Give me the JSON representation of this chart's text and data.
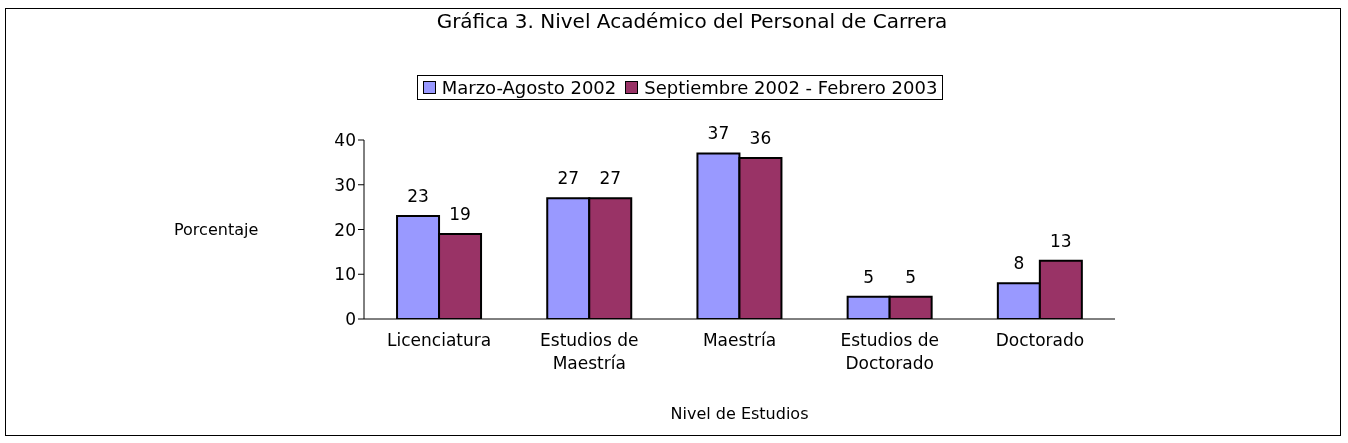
{
  "chart_data": {
    "type": "bar",
    "title": "Gráfica 3. Nivel Académico del Personal de Carrera",
    "xlabel": "Nivel de Estudios",
    "ylabel": "Porcentaje",
    "categories": [
      "Licenciatura",
      "Estudios de Maestría",
      "Maestría",
      "Estudios de Doctorado",
      "Doctorado"
    ],
    "series": [
      {
        "name": "Marzo-Agosto 2002",
        "color": "#9999ff",
        "values": [
          23,
          27,
          37,
          5,
          8
        ]
      },
      {
        "name": "Septiembre 2002 - Febrero 2003",
        "color": "#993366",
        "values": [
          19,
          27,
          36,
          5,
          13
        ]
      }
    ],
    "ylim": [
      0,
      40
    ],
    "yticks": [
      0,
      10,
      20,
      30,
      40
    ],
    "legend": "top",
    "data_labels": true
  }
}
